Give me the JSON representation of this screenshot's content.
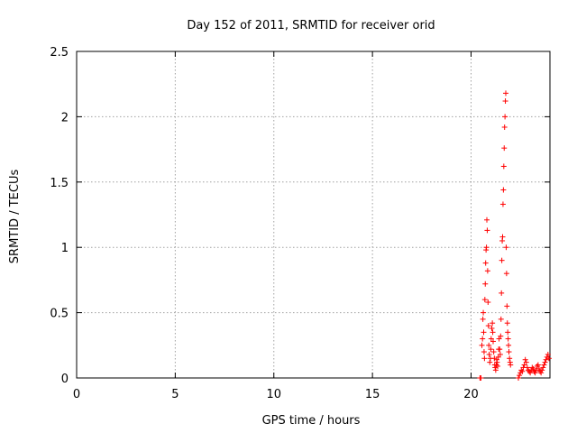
{
  "chart_data": {
    "type": "scatter",
    "title": "Day 152 of 2011, SRMTID for receiver orid",
    "xlabel": "GPS time / hours",
    "ylabel": "SRMTID / TECUs",
    "xlim": [
      0,
      24
    ],
    "ylim": [
      0,
      2.5
    ],
    "xticks": [
      0,
      5,
      10,
      15,
      20
    ],
    "yticks": [
      0,
      0.5,
      1,
      1.5,
      2,
      2.5
    ],
    "ytick_labels": [
      "0",
      "0.5",
      "1",
      "1.5",
      "2",
      "2.5"
    ],
    "grid": true,
    "marker": "plus",
    "color": "#ff0000",
    "series": [
      {
        "points": [
          [
            20.45,
            0.0
          ],
          [
            20.5,
            0.0
          ],
          [
            20.55,
            0.25
          ],
          [
            20.58,
            0.3
          ],
          [
            20.6,
            0.45
          ],
          [
            20.62,
            0.5
          ],
          [
            20.64,
            0.35
          ],
          [
            20.66,
            0.2
          ],
          [
            20.68,
            0.15
          ],
          [
            20.7,
            0.6
          ],
          [
            20.72,
            0.72
          ],
          [
            20.74,
            0.88
          ],
          [
            20.76,
            0.98
          ],
          [
            20.78,
            1.0
          ],
          [
            20.8,
            1.21
          ],
          [
            20.82,
            1.13
          ],
          [
            20.84,
            0.82
          ],
          [
            20.86,
            0.58
          ],
          [
            20.88,
            0.4
          ],
          [
            20.9,
            0.25
          ],
          [
            20.92,
            0.18
          ],
          [
            20.95,
            0.12
          ],
          [
            20.98,
            0.15
          ],
          [
            21.0,
            0.22
          ],
          [
            21.02,
            0.3
          ],
          [
            21.05,
            0.38
          ],
          [
            21.08,
            0.42
          ],
          [
            21.1,
            0.35
          ],
          [
            21.12,
            0.28
          ],
          [
            21.15,
            0.2
          ],
          [
            21.18,
            0.15
          ],
          [
            21.2,
            0.1
          ],
          [
            21.22,
            0.08
          ],
          [
            21.25,
            0.06
          ],
          [
            21.28,
            0.1
          ],
          [
            21.3,
            0.14
          ],
          [
            21.32,
            0.12
          ],
          [
            21.35,
            0.09
          ],
          [
            21.38,
            0.16
          ],
          [
            21.4,
            0.22
          ],
          [
            21.42,
            0.3
          ],
          [
            21.45,
            0.22
          ],
          [
            21.48,
            0.18
          ],
          [
            21.5,
            0.32
          ],
          [
            21.52,
            0.45
          ],
          [
            21.54,
            0.65
          ],
          [
            21.56,
            0.9
          ],
          [
            21.58,
            1.05
          ],
          [
            21.6,
            1.08
          ],
          [
            21.62,
            1.33
          ],
          [
            21.64,
            1.44
          ],
          [
            21.66,
            1.62
          ],
          [
            21.68,
            1.76
          ],
          [
            21.7,
            1.92
          ],
          [
            21.72,
            2.0
          ],
          [
            21.74,
            2.12
          ],
          [
            21.76,
            2.18
          ],
          [
            21.78,
            1.0
          ],
          [
            21.8,
            0.8
          ],
          [
            21.82,
            0.55
          ],
          [
            21.84,
            0.42
          ],
          [
            21.86,
            0.35
          ],
          [
            21.88,
            0.3
          ],
          [
            21.9,
            0.25
          ],
          [
            21.92,
            0.2
          ],
          [
            21.95,
            0.15
          ],
          [
            21.98,
            0.12
          ],
          [
            22.0,
            0.1
          ],
          [
            22.4,
            0.0
          ],
          [
            22.45,
            0.02
          ],
          [
            22.5,
            0.04
          ],
          [
            22.55,
            0.06
          ],
          [
            22.6,
            0.05
          ],
          [
            22.65,
            0.08
          ],
          [
            22.7,
            0.1
          ],
          [
            22.75,
            0.14
          ],
          [
            22.8,
            0.12
          ],
          [
            22.85,
            0.08
          ],
          [
            22.9,
            0.06
          ],
          [
            22.95,
            0.05
          ],
          [
            23.0,
            0.04
          ],
          [
            23.05,
            0.06
          ],
          [
            23.1,
            0.08
          ],
          [
            23.15,
            0.07
          ],
          [
            23.2,
            0.05
          ],
          [
            23.25,
            0.04
          ],
          [
            23.3,
            0.06
          ],
          [
            23.35,
            0.09
          ],
          [
            23.4,
            0.1
          ],
          [
            23.45,
            0.07
          ],
          [
            23.5,
            0.05
          ],
          [
            23.55,
            0.04
          ],
          [
            23.6,
            0.06
          ],
          [
            23.65,
            0.08
          ],
          [
            23.7,
            0.1
          ],
          [
            23.75,
            0.12
          ],
          [
            23.8,
            0.14
          ],
          [
            23.85,
            0.16
          ],
          [
            23.9,
            0.18
          ],
          [
            23.95,
            0.15
          ]
        ]
      }
    ]
  }
}
